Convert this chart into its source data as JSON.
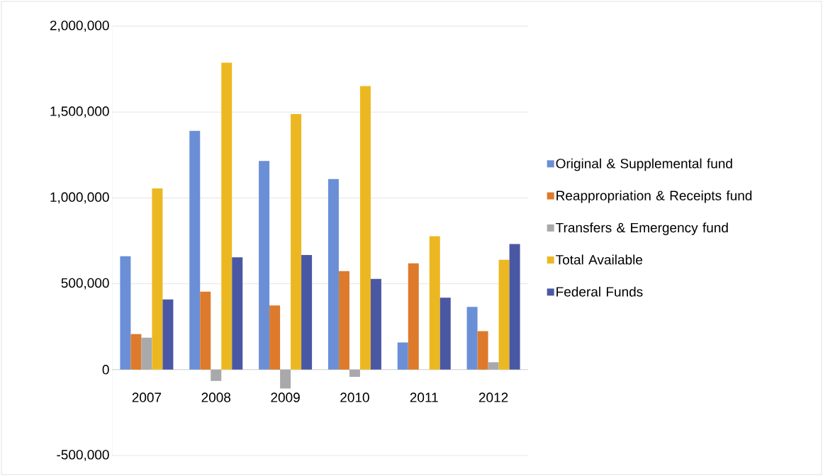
{
  "chart_data": {
    "type": "bar",
    "categories": [
      "2007",
      "2008",
      "2009",
      "2010",
      "2011",
      "2012"
    ],
    "series": [
      {
        "name": "Original & Supplemental fund",
        "color": "#6a8fd6",
        "values": [
          660000,
          1390000,
          1215000,
          1110000,
          158000,
          365000
        ]
      },
      {
        "name": "Reappropriation & Receipts fund",
        "color": "#dd7a2c",
        "values": [
          207000,
          454000,
          374000,
          574000,
          619000,
          224000
        ]
      },
      {
        "name": "Transfers & Emergency fund",
        "color": "#a9a9ab",
        "values": [
          186000,
          -66000,
          -110000,
          -42000,
          0,
          43000
        ]
      },
      {
        "name": "Total Available",
        "color": "#ecb822",
        "values": [
          1055000,
          1788000,
          1488000,
          1651000,
          777000,
          640000
        ]
      },
      {
        "name": "Federal Funds",
        "color": "#4a58a4",
        "values": [
          409000,
          654000,
          668000,
          528000,
          419000,
          731000
        ]
      }
    ],
    "ylim": [
      -500000,
      2000000
    ],
    "yticks": [
      {
        "value": -500000,
        "label": "-500,000"
      },
      {
        "value": 0,
        "label": "0"
      },
      {
        "value": 500000,
        "label": "500,000"
      },
      {
        "value": 1000000,
        "label": "1,000,000"
      },
      {
        "value": 1500000,
        "label": "1,500,000"
      },
      {
        "value": 2000000,
        "label": "2,000,000"
      }
    ],
    "grid": "y",
    "legend": "right"
  }
}
